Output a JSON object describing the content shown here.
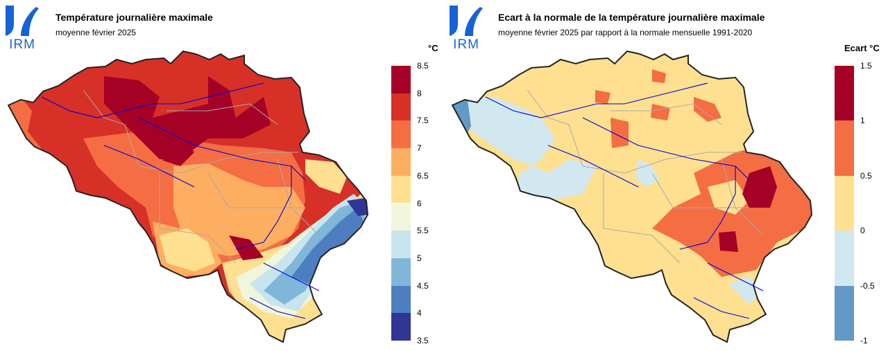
{
  "logo": {
    "text": "IRM",
    "color": "#1662d6"
  },
  "panels": [
    {
      "title": "Température journalière maximale",
      "subtitle": "moyenne février 2025",
      "unit": "°C",
      "legend": {
        "ticks": [
          "8.5",
          "8",
          "7.5",
          "7",
          "6.5",
          "6",
          "5.5",
          "5",
          "4.5",
          "4",
          "3.5"
        ],
        "colors": [
          "#a50026",
          "#d73027",
          "#f46d43",
          "#fdae61",
          "#fee090",
          "#f0f6dc",
          "#c8e4ef",
          "#80b7d8",
          "#4d7fc0",
          "#313695"
        ]
      }
    },
    {
      "title": "Ecart à la normale de la température journalière maximale",
      "subtitle": "moyenne février 2025 par rapport à la normale mensuelle 1991-2020",
      "unit": "Ecart °C",
      "legend": {
        "ticks": [
          "1.5",
          "1",
          "0.5",
          "0",
          "-0.5",
          "-1"
        ],
        "colors": [
          "#a50026",
          "#f46d43",
          "#fee090",
          "#d1e8f1",
          "#6399c6"
        ]
      }
    }
  ],
  "map_colors": {
    "border": "#222222",
    "rivers": "#0000dd",
    "provinces": "#aaaaaa"
  }
}
